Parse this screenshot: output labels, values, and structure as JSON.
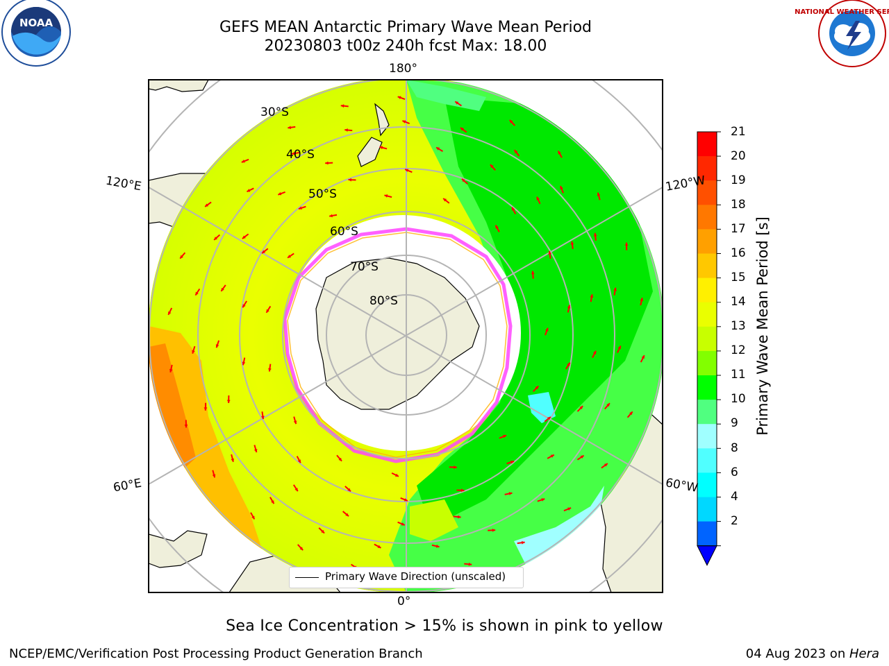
{
  "title": {
    "line1": "GEFS MEAN Antarctic Primary Wave Mean Period",
    "line2": "20230803 t00z 240h fcst   Max: 18.00"
  },
  "map": {
    "projection": "south polar stereographic",
    "longitude_labels": [
      "180°",
      "120°E",
      "120°W",
      "60°E",
      "60°W",
      "0°"
    ],
    "latitude_labels": [
      "30°S",
      "40°S",
      "50°S",
      "60°S",
      "70°S",
      "80°S"
    ],
    "legend": "Primary Wave Direction (unscaled)",
    "arrow_color": "#ff0000",
    "land_color": "#efefdb",
    "ice_edge_colors": [
      "#ff44ff",
      "#ffb000"
    ]
  },
  "colorbar": {
    "title": "Primary Wave Mean Period [s]",
    "ticks": [
      "21",
      "20",
      "19",
      "18",
      "17",
      "16",
      "15",
      "14",
      "13",
      "12",
      "11",
      "10",
      "9",
      "8",
      "6",
      "4",
      "2"
    ],
    "colors": [
      "#ff0000",
      "#ff2800",
      "#ff5000",
      "#ff7800",
      "#ffa000",
      "#ffc800",
      "#fff000",
      "#eaff00",
      "#c8ff00",
      "#82ff00",
      "#00ff00",
      "#50ff80",
      "#a0ffff",
      "#50ffff",
      "#00ffff",
      "#00d8ff",
      "#0064ff"
    ],
    "extend_color": "#0000ff"
  },
  "note": "Sea Ice Concentration > 15% is shown in pink to yellow",
  "footer": {
    "left": "NCEP/EMC/Verification Post Processing Product Generation Branch",
    "right_date": "04 Aug 2023 on ",
    "right_host": "Hera"
  },
  "logos": {
    "noaa": "NOAA",
    "nws": "NATIONAL WEATHER SERVICE"
  }
}
